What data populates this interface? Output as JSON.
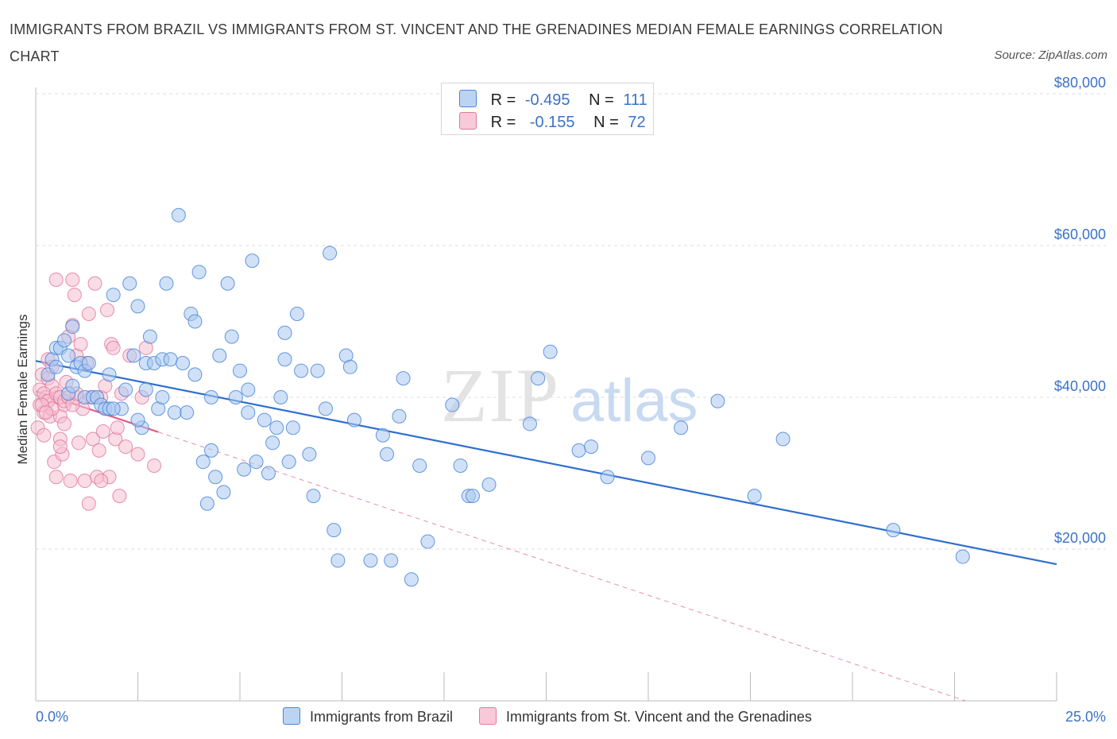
{
  "title": "IMMIGRANTS FROM BRAZIL VS IMMIGRANTS FROM ST. VINCENT AND THE GRENADINES MEDIAN FEMALE EARNINGS CORRELATION CHART",
  "source": "Source: ZipAtlas.com",
  "watermark": {
    "zip": "ZIP",
    "atlas": "atlas"
  },
  "legend": {
    "series1": {
      "r_label": "R =",
      "r_value": "-0.495",
      "n_label": "N =",
      "n_value": "111"
    },
    "series2": {
      "r_label": "R =",
      "r_value": "-0.155",
      "n_label": "N =",
      "n_value": "72"
    }
  },
  "colors": {
    "blue_fill": "#aac8f0",
    "blue_stroke": "#4a86d8",
    "blue_line": "#2f6fd0",
    "pink_fill": "#f6bfd0",
    "pink_stroke": "#e07aa0",
    "pink_line": "#e0608c",
    "grid": "#dddddd",
    "accent_text": "#3b72c6"
  },
  "chart_data": {
    "type": "scatter",
    "title": "IMMIGRANTS FROM BRAZIL VS IMMIGRANTS FROM ST. VINCENT AND THE GRENADINES MEDIAN FEMALE EARNINGS CORRELATION CHART",
    "xlabel": "",
    "ylabel": "Median Female Earnings",
    "xlim": [
      0,
      25
    ],
    "ylim": [
      0,
      80000
    ],
    "x_tick_labels": {
      "min": "0.0%",
      "max": "25.0%"
    },
    "y_ticks": [
      {
        "value": 20000,
        "label": "$20,000"
      },
      {
        "value": 40000,
        "label": "$40,000"
      },
      {
        "value": 60000,
        "label": "$60,000"
      },
      {
        "value": 80000,
        "label": "$80,000"
      }
    ],
    "series": [
      {
        "name": "Immigrants from Brazil",
        "color": "blue",
        "trend": {
          "x0": 0,
          "y0": 44800,
          "x1": 25,
          "y1": 18000,
          "solid_to": 25
        },
        "points": [
          [
            0.3,
            43000
          ],
          [
            0.4,
            45000
          ],
          [
            0.5,
            44000
          ],
          [
            0.5,
            46500
          ],
          [
            0.6,
            46500
          ],
          [
            0.7,
            47500
          ],
          [
            0.8,
            40500
          ],
          [
            0.8,
            45500
          ],
          [
            0.9,
            41500
          ],
          [
            0.9,
            49300
          ],
          [
            1.0,
            44000
          ],
          [
            1.1,
            44500
          ],
          [
            1.2,
            40000
          ],
          [
            1.2,
            43500
          ],
          [
            1.3,
            44500
          ],
          [
            1.4,
            40000
          ],
          [
            1.5,
            40000
          ],
          [
            1.6,
            39000
          ],
          [
            1.7,
            38500
          ],
          [
            1.8,
            38500
          ],
          [
            1.8,
            43000
          ],
          [
            1.9,
            53500
          ],
          [
            2.1,
            38500
          ],
          [
            2.2,
            41000
          ],
          [
            2.3,
            55000
          ],
          [
            2.4,
            45500
          ],
          [
            2.5,
            52000
          ],
          [
            2.6,
            36000
          ],
          [
            2.7,
            41000
          ],
          [
            2.7,
            44500
          ],
          [
            2.8,
            48000
          ],
          [
            2.9,
            44500
          ],
          [
            3.0,
            38500
          ],
          [
            3.1,
            40000
          ],
          [
            3.1,
            45000
          ],
          [
            3.2,
            55000
          ],
          [
            3.3,
            45000
          ],
          [
            3.4,
            38000
          ],
          [
            3.5,
            64000
          ],
          [
            3.6,
            44500
          ],
          [
            3.7,
            38000
          ],
          [
            3.8,
            51000
          ],
          [
            3.9,
            50000
          ],
          [
            3.9,
            43000
          ],
          [
            4.0,
            56500
          ],
          [
            4.1,
            31500
          ],
          [
            4.2,
            26000
          ],
          [
            4.3,
            33000
          ],
          [
            4.4,
            29500
          ],
          [
            4.5,
            45500
          ],
          [
            4.6,
            27500
          ],
          [
            4.7,
            55000
          ],
          [
            4.8,
            48000
          ],
          [
            4.9,
            40000
          ],
          [
            5.0,
            43500
          ],
          [
            5.1,
            30500
          ],
          [
            5.2,
            38000
          ],
          [
            5.2,
            41000
          ],
          [
            5.3,
            58000
          ],
          [
            5.4,
            31500
          ],
          [
            5.6,
            37000
          ],
          [
            5.7,
            30000
          ],
          [
            5.8,
            34000
          ],
          [
            5.9,
            36000
          ],
          [
            6.0,
            40000
          ],
          [
            6.1,
            48500
          ],
          [
            6.2,
            31500
          ],
          [
            6.3,
            36000
          ],
          [
            6.4,
            51000
          ],
          [
            6.5,
            43500
          ],
          [
            6.7,
            32500
          ],
          [
            6.8,
            27000
          ],
          [
            6.9,
            43500
          ],
          [
            7.1,
            38500
          ],
          [
            7.2,
            59000
          ],
          [
            7.3,
            22500
          ],
          [
            7.4,
            18500
          ],
          [
            7.6,
            45500
          ],
          [
            7.7,
            44000
          ],
          [
            7.8,
            37000
          ],
          [
            8.2,
            18500
          ],
          [
            8.5,
            35000
          ],
          [
            8.6,
            32500
          ],
          [
            8.7,
            18500
          ],
          [
            8.9,
            37500
          ],
          [
            9.0,
            42500
          ],
          [
            9.2,
            16000
          ],
          [
            9.4,
            31000
          ],
          [
            9.6,
            21000
          ],
          [
            10.2,
            39000
          ],
          [
            10.4,
            31000
          ],
          [
            10.6,
            27000
          ],
          [
            10.7,
            27000
          ],
          [
            11.1,
            28500
          ],
          [
            12.1,
            36500
          ],
          [
            12.3,
            42500
          ],
          [
            12.6,
            46000
          ],
          [
            13.3,
            33000
          ],
          [
            13.6,
            33500
          ],
          [
            14.0,
            29500
          ],
          [
            15.0,
            32000
          ],
          [
            15.8,
            36000
          ],
          [
            16.7,
            39500
          ],
          [
            17.6,
            27000
          ],
          [
            18.3,
            34500
          ],
          [
            21.0,
            22500
          ],
          [
            22.7,
            19000
          ],
          [
            1.9,
            38500
          ],
          [
            2.5,
            37000
          ],
          [
            4.3,
            40000
          ],
          [
            6.1,
            45000
          ]
        ]
      },
      {
        "name": "Immigrants from St. Vincent and the Grenadines",
        "color": "pink",
        "trend": {
          "x0": 0,
          "y0": 40800,
          "x1": 25,
          "y1": -4000,
          "solid_to": 3.0
        },
        "points": [
          [
            0.05,
            36000
          ],
          [
            0.1,
            39000
          ],
          [
            0.1,
            41000
          ],
          [
            0.15,
            43000
          ],
          [
            0.2,
            38000
          ],
          [
            0.2,
            35000
          ],
          [
            0.25,
            40000
          ],
          [
            0.3,
            45000
          ],
          [
            0.3,
            42500
          ],
          [
            0.3,
            39500
          ],
          [
            0.35,
            37500
          ],
          [
            0.4,
            41500
          ],
          [
            0.4,
            44000
          ],
          [
            0.45,
            31500
          ],
          [
            0.5,
            55500
          ],
          [
            0.5,
            29500
          ],
          [
            0.55,
            40000
          ],
          [
            0.6,
            37500
          ],
          [
            0.6,
            34500
          ],
          [
            0.65,
            32500
          ],
          [
            0.7,
            39000
          ],
          [
            0.7,
            36500
          ],
          [
            0.75,
            42000
          ],
          [
            0.8,
            48000
          ],
          [
            0.85,
            29000
          ],
          [
            0.9,
            55500
          ],
          [
            0.9,
            49500
          ],
          [
            0.95,
            53500
          ],
          [
            1.0,
            45500
          ],
          [
            1.0,
            40000
          ],
          [
            1.05,
            34000
          ],
          [
            1.1,
            47000
          ],
          [
            1.15,
            38500
          ],
          [
            1.2,
            29000
          ],
          [
            1.25,
            44500
          ],
          [
            1.3,
            51000
          ],
          [
            1.3,
            26000
          ],
          [
            1.35,
            40000
          ],
          [
            1.4,
            34500
          ],
          [
            1.45,
            55000
          ],
          [
            1.5,
            29500
          ],
          [
            1.55,
            33000
          ],
          [
            1.6,
            40000
          ],
          [
            1.65,
            35500
          ],
          [
            1.7,
            41500
          ],
          [
            1.75,
            51500
          ],
          [
            1.8,
            29500
          ],
          [
            1.85,
            47000
          ],
          [
            1.9,
            46500
          ],
          [
            1.95,
            34500
          ],
          [
            2.0,
            36000
          ],
          [
            2.05,
            27000
          ],
          [
            2.1,
            40500
          ],
          [
            2.2,
            33500
          ],
          [
            2.3,
            45500
          ],
          [
            2.5,
            32500
          ],
          [
            2.6,
            40000
          ],
          [
            2.7,
            46500
          ],
          [
            2.9,
            31000
          ],
          [
            0.2,
            40500
          ],
          [
            0.3,
            39500
          ],
          [
            0.4,
            38500
          ],
          [
            0.5,
            40500
          ],
          [
            0.6,
            40000
          ],
          [
            0.7,
            39500
          ],
          [
            0.8,
            40000
          ],
          [
            0.9,
            39000
          ],
          [
            1.0,
            40500
          ],
          [
            0.15,
            39000
          ],
          [
            0.25,
            38000
          ],
          [
            1.6,
            29000
          ],
          [
            0.6,
            33500
          ]
        ]
      }
    ],
    "legend_entries": [
      "Immigrants from Brazil",
      "Immigrants from St. Vincent and the Grenadines"
    ]
  }
}
